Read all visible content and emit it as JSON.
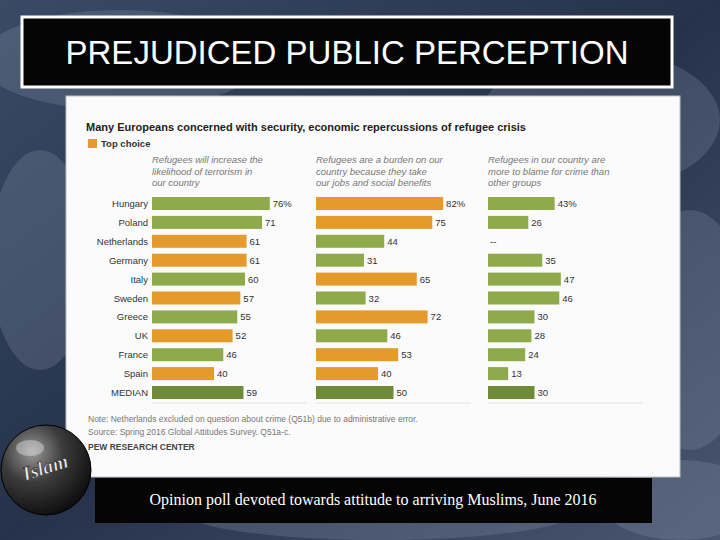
{
  "slide": {
    "title": "PREJUDICED PUBLIC PERCEPTION",
    "caption": "Opinion poll devoted towards attitude to arriving Muslims, June 2016",
    "badge": "Islam"
  },
  "chart_data": {
    "type": "bar",
    "orientation": "horizontal",
    "title": "Many Europeans concerned with security, economic repercussions of refugee crisis",
    "legend_items": [
      {
        "label": "Top choice",
        "color": "#e49b2c"
      }
    ],
    "categories": [
      "Hungary",
      "Poland",
      "Netherlands",
      "Germany",
      "Italy",
      "Sweden",
      "Greece",
      "UK",
      "France",
      "Spain",
      "MEDIAN"
    ],
    "series": [
      {
        "name": "Refugees will increase the likelihood of terrorism in our country",
        "values": [
          76,
          71,
          61,
          61,
          60,
          57,
          55,
          52,
          46,
          40,
          59
        ],
        "value_labels": [
          "76%",
          "71",
          "61",
          "61",
          "60",
          "57",
          "55",
          "52",
          "46",
          "40",
          "59"
        ],
        "colors": [
          "#8faa4b",
          "#8faa4b",
          "#e49b2c",
          "#e49b2c",
          "#8faa4b",
          "#e49b2c",
          "#8faa4b",
          "#e49b2c",
          "#8faa4b",
          "#e49b2c",
          "#6f8b38"
        ]
      },
      {
        "name": "Refugees are a burden on our country because they take our jobs and social benefits",
        "values": [
          82,
          75,
          44,
          31,
          65,
          32,
          72,
          46,
          53,
          40,
          50
        ],
        "value_labels": [
          "82%",
          "75",
          "44",
          "31",
          "65",
          "32",
          "72",
          "46",
          "53",
          "40",
          "50"
        ],
        "colors": [
          "#e49b2c",
          "#e49b2c",
          "#8faa4b",
          "#8faa4b",
          "#e49b2c",
          "#8faa4b",
          "#e49b2c",
          "#8faa4b",
          "#e49b2c",
          "#e49b2c",
          "#6f8b38"
        ]
      },
      {
        "name": "Refugees in our country are more to blame for crime than other groups",
        "values": [
          43,
          26,
          null,
          35,
          47,
          46,
          30,
          28,
          24,
          13,
          30
        ],
        "value_labels": [
          "43%",
          "26",
          "--",
          "35",
          "47",
          "46",
          "30",
          "28",
          "24",
          "13",
          "30"
        ],
        "colors": [
          "#8faa4b",
          "#8faa4b",
          "#8faa4b",
          "#8faa4b",
          "#8faa4b",
          "#8faa4b",
          "#8faa4b",
          "#8faa4b",
          "#8faa4b",
          "#8faa4b",
          "#6f8b38"
        ]
      }
    ],
    "xlim": [
      0,
      100
    ],
    "tick_labels": false,
    "data_labels": true,
    "notes": [
      "Note: Netherlands excluded on question about crime (Q51b) due to administrative error.",
      "Source: Spring 2016 Global Attitudes Survey. Q51a-c."
    ],
    "source_org": "PEW RESEARCH CENTER"
  }
}
